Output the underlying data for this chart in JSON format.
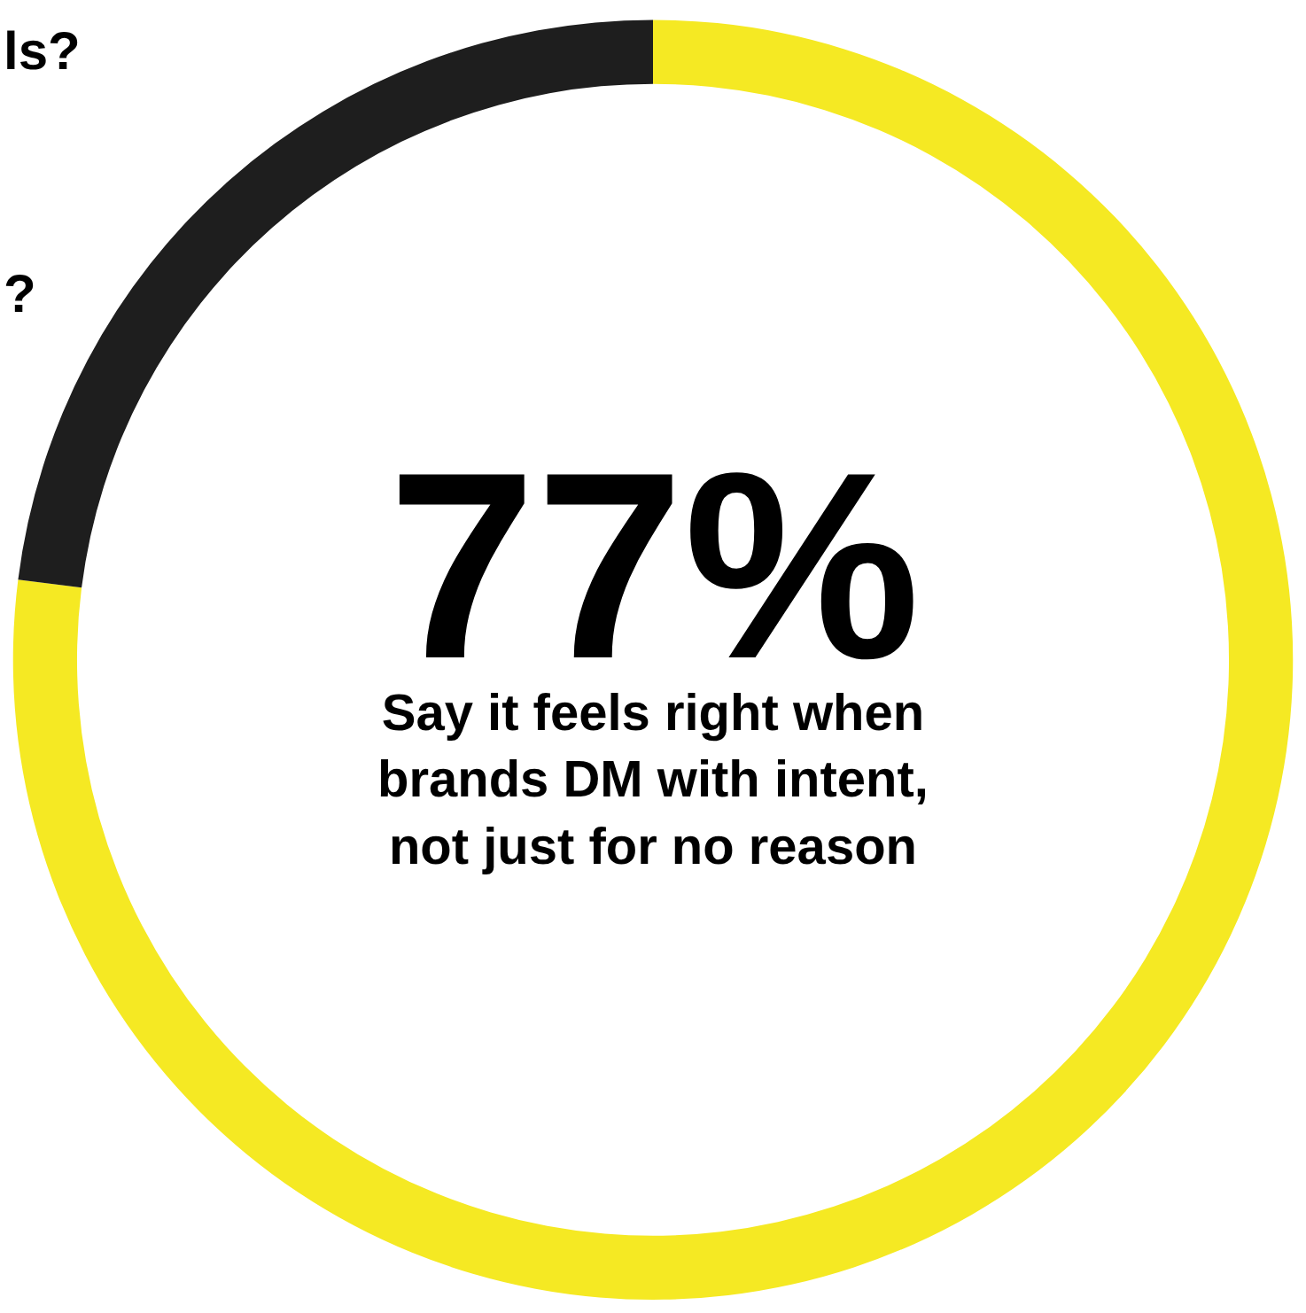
{
  "chart_data": {
    "type": "donut",
    "categories": [
      null,
      null
    ],
    "values": [
      77,
      23
    ],
    "colors": [
      "#f5e923",
      "#1e1e1e"
    ],
    "value_labels": [
      "77%",
      null
    ],
    "annotations": [
      "Say it feels right when\nbrands DM with intent,\nnot just for no reason",
      "ls?",
      "?"
    ],
    "legend": false
  }
}
